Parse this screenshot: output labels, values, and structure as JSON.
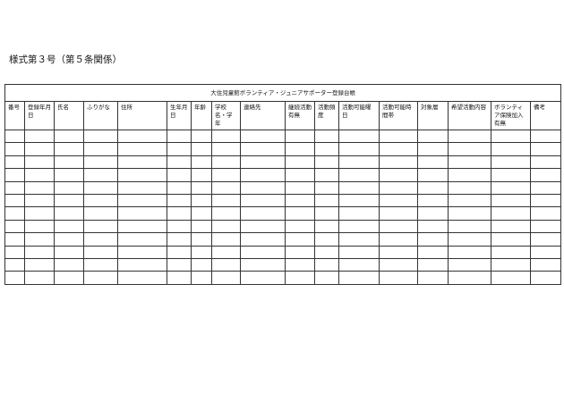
{
  "form_label": "様式第３号（第５条関係）",
  "table": {
    "title": "大住児童館ボランティア・ジュニアサポーター登録台帳",
    "columns": [
      "番号",
      "登録年月日",
      "氏名",
      "ふりがな",
      "住所",
      "生年月日",
      "年齢",
      "学校名・学年",
      "連絡先",
      "継続活動有無",
      "活動頻度",
      "活動可能曜日",
      "活動可能時間帯",
      "対象層",
      "希望活動内容",
      "ボランティア保険加入有無",
      "備考"
    ],
    "empty_rows": 12
  }
}
